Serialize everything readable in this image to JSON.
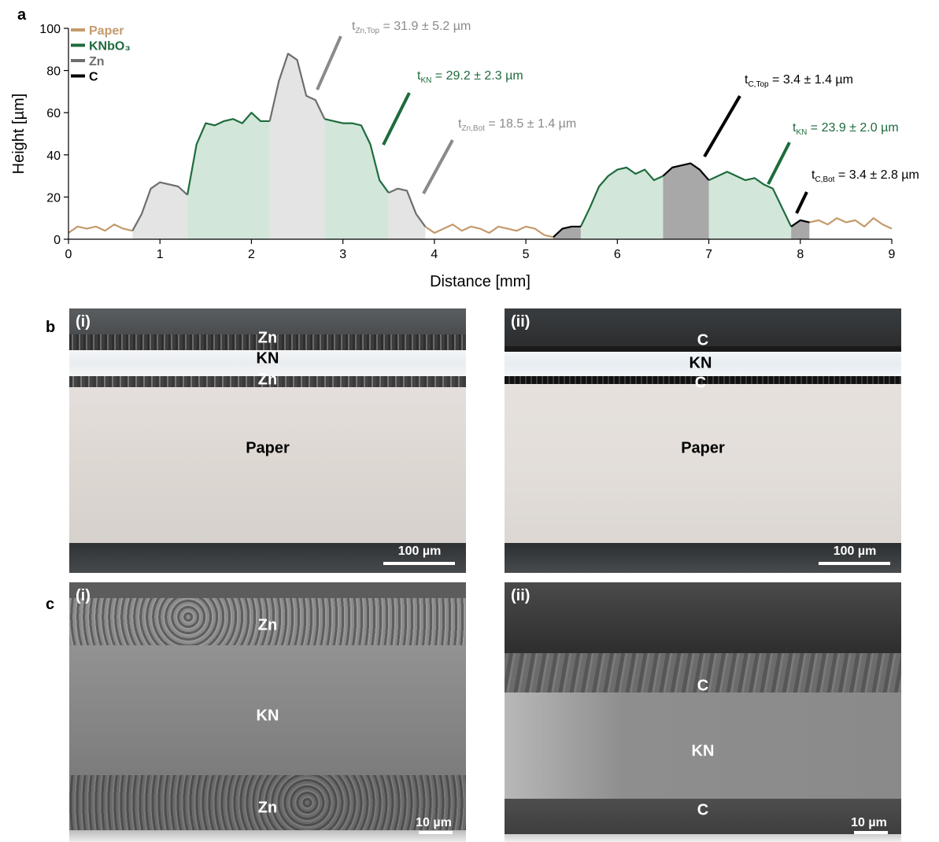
{
  "chart_data": {
    "type": "line",
    "x": [
      0,
      0.1,
      0.2,
      0.3,
      0.4,
      0.5,
      0.6,
      0.7,
      0.8,
      0.9,
      1,
      1.1,
      1.2,
      1.3,
      1.4,
      1.5,
      1.6,
      1.7,
      1.8,
      1.9,
      2,
      2.1,
      2.2,
      2.3,
      2.4,
      2.5,
      2.6,
      2.7,
      2.8,
      2.9,
      3,
      3.1,
      3.2,
      3.3,
      3.4,
      3.5,
      3.6,
      3.7,
      3.8,
      3.9,
      4,
      4.1,
      4.2,
      4.3,
      4.4,
      4.5,
      4.6,
      4.7,
      4.8,
      4.9,
      5,
      5.1,
      5.2,
      5.3,
      5.4,
      5.5,
      5.6,
      5.7,
      5.8,
      5.9,
      6,
      6.1,
      6.2,
      6.3,
      6.4,
      6.5,
      6.6,
      6.7,
      6.8,
      6.9,
      7,
      7.1,
      7.2,
      7.3,
      7.4,
      7.5,
      7.6,
      7.7,
      7.8,
      7.9,
      8,
      8.1,
      8.2,
      8.3,
      8.4,
      8.5,
      8.6,
      8.7,
      8.8,
      8.9,
      9
    ],
    "series": [
      {
        "name": "Paper",
        "color": "#c49a6c",
        "values": [
          3,
          6,
          5,
          6,
          4,
          7,
          5,
          4,
          null,
          null,
          null,
          null,
          null,
          null,
          null,
          null,
          null,
          null,
          null,
          null,
          null,
          null,
          null,
          null,
          null,
          null,
          null,
          null,
          null,
          null,
          null,
          null,
          null,
          null,
          null,
          null,
          null,
          null,
          null,
          6,
          3,
          5,
          7,
          4,
          6,
          5,
          3,
          6,
          5,
          4,
          6,
          5,
          2,
          1,
          null,
          null,
          null,
          null,
          null,
          null,
          null,
          null,
          null,
          null,
          null,
          null,
          null,
          null,
          null,
          null,
          null,
          null,
          null,
          null,
          null,
          null,
          null,
          null,
          null,
          null,
          null,
          8,
          9,
          7,
          10,
          8,
          9,
          6,
          10,
          7,
          5
        ]
      },
      {
        "name": "KNbO₃",
        "color": "#1e6b3c",
        "fill": "#d2e6d9",
        "values": [
          null,
          null,
          null,
          null,
          null,
          null,
          null,
          null,
          null,
          null,
          null,
          null,
          null,
          21,
          45,
          55,
          54,
          56,
          57,
          55,
          60,
          56,
          56,
          null,
          null,
          null,
          null,
          null,
          57,
          56,
          55,
          55,
          54,
          45,
          28,
          22,
          null,
          null,
          null,
          null,
          null,
          null,
          null,
          null,
          null,
          null,
          null,
          null,
          null,
          null,
          null,
          null,
          null,
          null,
          null,
          null,
          6,
          15,
          25,
          30,
          33,
          34,
          31,
          33,
          28,
          30,
          null,
          null,
          null,
          null,
          28,
          30,
          32,
          30,
          28,
          29,
          26,
          24,
          15,
          6,
          null,
          null,
          null,
          null,
          null,
          null,
          null,
          null,
          null,
          null,
          null
        ]
      },
      {
        "name": "Zn",
        "color": "#6e6e6e",
        "fill": "#e4e4e4",
        "values": [
          null,
          null,
          null,
          null,
          null,
          null,
          null,
          4,
          12,
          24,
          27,
          26,
          25,
          21,
          null,
          null,
          null,
          null,
          null,
          null,
          null,
          null,
          56,
          75,
          88,
          85,
          68,
          66,
          57,
          null,
          null,
          null,
          null,
          null,
          null,
          22,
          24,
          23,
          12,
          6,
          null,
          null,
          null,
          null,
          null,
          null,
          null,
          null,
          null,
          null,
          null,
          null,
          null,
          null,
          null,
          null,
          null,
          null,
          null,
          null,
          null,
          null,
          null,
          null,
          null,
          null,
          null,
          null,
          null,
          null,
          null,
          null,
          null,
          null,
          null,
          null,
          null,
          null,
          null,
          null,
          null,
          null,
          null,
          null,
          null,
          null,
          null,
          null,
          null,
          null,
          null
        ]
      },
      {
        "name": "C",
        "color": "#000000",
        "fill": "#a8a8a8",
        "values": [
          null,
          null,
          null,
          null,
          null,
          null,
          null,
          null,
          null,
          null,
          null,
          null,
          null,
          null,
          null,
          null,
          null,
          null,
          null,
          null,
          null,
          null,
          null,
          null,
          null,
          null,
          null,
          null,
          null,
          null,
          null,
          null,
          null,
          null,
          null,
          null,
          null,
          null,
          null,
          null,
          null,
          null,
          null,
          null,
          null,
          null,
          null,
          null,
          null,
          null,
          null,
          null,
          null,
          1,
          5,
          6,
          6,
          null,
          null,
          null,
          null,
          null,
          null,
          null,
          null,
          30,
          34,
          35,
          36,
          33,
          28,
          null,
          null,
          null,
          null,
          null,
          null,
          null,
          null,
          6,
          9,
          8,
          null,
          null,
          null,
          null,
          null,
          null,
          null,
          null,
          null
        ]
      }
    ],
    "xlabel": "Distance [mm]",
    "ylabel": "Height [µm]",
    "xlim": [
      0,
      9
    ],
    "xticks": [
      0,
      1,
      2,
      3,
      4,
      5,
      6,
      7,
      8,
      9
    ],
    "ylim": [
      0,
      100
    ],
    "yticks": [
      0,
      20,
      40,
      60,
      80,
      100
    ],
    "legend": "upper left",
    "annotations": [
      {
        "text": "t",
        "sub": "Zn,Top",
        "rest": " = 31.9 ±  5.2 µm",
        "color": "#8a8a8a"
      },
      {
        "text": "t",
        "sub": "KN",
        "rest": " = 29.2 ± 2.3 µm",
        "color": "#1e6b3c"
      },
      {
        "text": "t",
        "sub": "Zn,Bot",
        "rest": " = 18.5 ± 1.4 µm",
        "color": "#8a8a8a"
      },
      {
        "text": "t",
        "sub": "C,Top",
        "rest": " = 3.4 ± 1.4 µm",
        "color": "#000000"
      },
      {
        "text": "t",
        "sub": "KN",
        "rest": " = 23.9 ± 2.0 µm",
        "color": "#1e6b3c"
      },
      {
        "text": "t",
        "sub": "C,Bot",
        "rest": " = 3.4 ± 2.8 µm",
        "color": "#000000"
      }
    ]
  },
  "figure_labels": [
    "a",
    "b",
    "c"
  ],
  "micrographs": [
    {
      "tag": "(i)",
      "labels": [
        "Zn",
        "KN",
        "Zn",
        "Paper"
      ],
      "scale_bar": "100 µm"
    },
    {
      "tag": "(ii)",
      "labels": [
        "C",
        "KN",
        "C",
        "Paper"
      ],
      "scale_bar": "100 µm"
    },
    {
      "tag": "(i)",
      "labels": [
        "Zn",
        "KN",
        "Zn"
      ],
      "scale_bar": "10 µm"
    },
    {
      "tag": "(ii)",
      "labels": [
        "C",
        "KN",
        "C"
      ],
      "scale_bar": "10 µm"
    }
  ]
}
